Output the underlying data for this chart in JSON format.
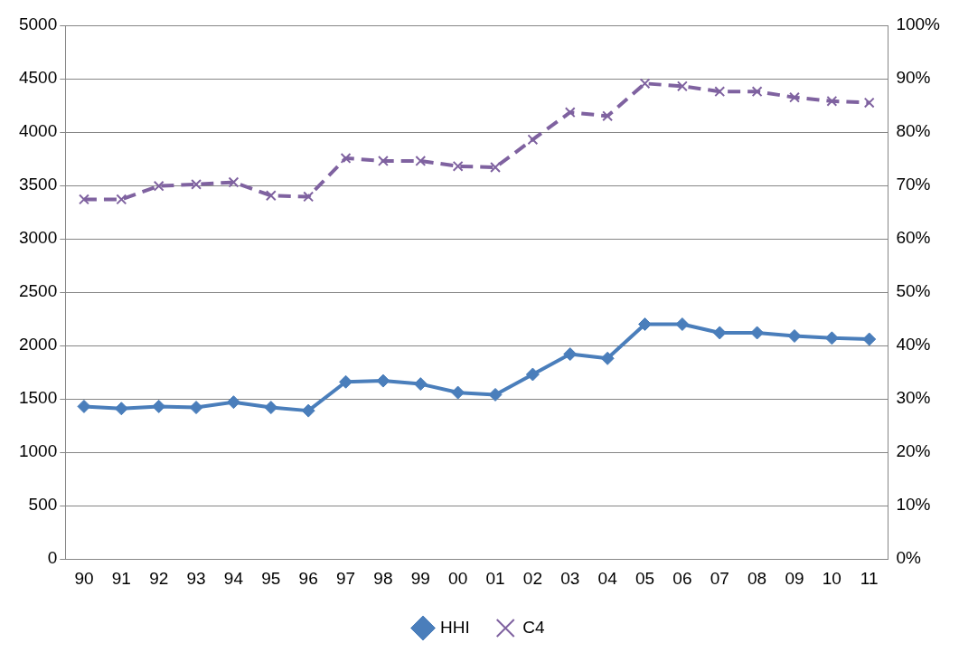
{
  "chart_data": {
    "type": "line",
    "categories": [
      "90",
      "91",
      "92",
      "93",
      "94",
      "95",
      "96",
      "97",
      "98",
      "99",
      "00",
      "01",
      "02",
      "03",
      "04",
      "05",
      "06",
      "07",
      "08",
      "09",
      "10",
      "11"
    ],
    "series": [
      {
        "name": "HHI",
        "color": "#4a7ebb",
        "marker": "diamond",
        "line_style": "solid",
        "values": [
          1430,
          1410,
          1430,
          1420,
          1470,
          1420,
          1390,
          1660,
          1670,
          1640,
          1560,
          1540,
          1730,
          1920,
          1880,
          2200,
          2200,
          2120,
          2120,
          2090,
          2070,
          2060
        ]
      },
      {
        "name": "C4",
        "color": "#7f62a0",
        "marker": "cross",
        "line_style": "dashed",
        "axis": "y2",
        "values": [
          67.4,
          67.4,
          69.9,
          70.2,
          70.6,
          68.1,
          67.9,
          75.1,
          74.6,
          74.6,
          73.6,
          73.4,
          78.6,
          83.7,
          83.0,
          89.1,
          88.6,
          87.6,
          87.6,
          86.5,
          85.8,
          85.5
        ]
      }
    ],
    "ylim": [
      0,
      5000
    ],
    "yticks": [
      0,
      500,
      1000,
      1500,
      2000,
      2500,
      3000,
      3500,
      4000,
      4500,
      5000
    ],
    "y2lim": [
      0,
      100
    ],
    "y2ticks": [
      {
        "value": 0,
        "label": "0%"
      },
      {
        "value": 10,
        "label": "10%"
      },
      {
        "value": 20,
        "label": "20%"
      },
      {
        "value": 30,
        "label": "30%"
      },
      {
        "value": 40,
        "label": "40%"
      },
      {
        "value": 50,
        "label": "50%"
      },
      {
        "value": 60,
        "label": "60%"
      },
      {
        "value": 70,
        "label": "70%"
      },
      {
        "value": 80,
        "label": "80%"
      },
      {
        "value": 90,
        "label": "90%"
      },
      {
        "value": 100,
        "label": "100%"
      }
    ],
    "grid": "y",
    "legend": "bottom"
  }
}
